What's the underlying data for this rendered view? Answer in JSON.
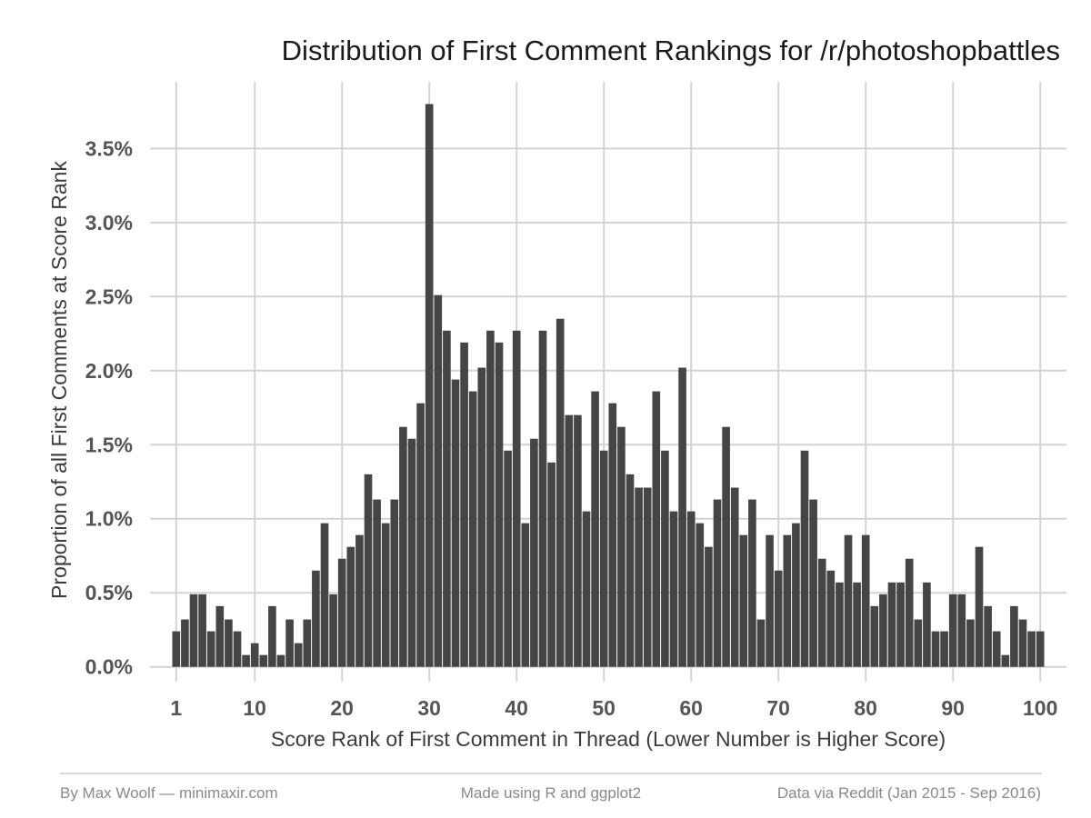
{
  "chart_data": {
    "type": "bar",
    "title": "Distribution of First Comment Rankings for /r/photoshopbattles",
    "xlabel": "Score Rank of First Comment in Thread (Lower Number is Higher Score)",
    "ylabel": "Proportion of all First Comments at Score Rank",
    "x_ticks": [
      1,
      10,
      20,
      30,
      40,
      50,
      60,
      70,
      80,
      90,
      100
    ],
    "y_ticks": [
      0.0,
      0.5,
      1.0,
      1.5,
      2.0,
      2.5,
      3.0,
      3.5
    ],
    "y_tick_labels": [
      "0.0%",
      "0.5%",
      "1.0%",
      "1.5%",
      "2.0%",
      "2.5%",
      "3.0%",
      "3.5%"
    ],
    "xlim": [
      -2,
      103
    ],
    "ylim": [
      -0.1,
      3.95
    ],
    "grid": true,
    "categories": [
      1,
      2,
      3,
      4,
      5,
      6,
      7,
      8,
      9,
      10,
      11,
      12,
      13,
      14,
      15,
      16,
      17,
      18,
      19,
      20,
      21,
      22,
      23,
      24,
      25,
      26,
      27,
      28,
      29,
      30,
      31,
      32,
      33,
      34,
      35,
      36,
      37,
      38,
      39,
      40,
      41,
      42,
      43,
      44,
      45,
      46,
      47,
      48,
      49,
      50,
      51,
      52,
      53,
      54,
      55,
      56,
      57,
      58,
      59,
      60,
      61,
      62,
      63,
      64,
      65,
      66,
      67,
      68,
      69,
      70,
      71,
      72,
      73,
      74,
      75,
      76,
      77,
      78,
      79,
      80,
      81,
      82,
      83,
      84,
      85,
      86,
      87,
      88,
      89,
      90,
      91,
      92,
      93,
      94,
      95,
      96,
      97,
      98,
      99,
      100
    ],
    "values": [
      0.24,
      0.32,
      0.49,
      0.49,
      0.24,
      0.41,
      0.32,
      0.24,
      0.08,
      0.16,
      0.08,
      0.41,
      0.08,
      0.32,
      0.16,
      0.32,
      0.65,
      0.97,
      0.49,
      0.73,
      0.81,
      0.89,
      1.3,
      1.13,
      0.97,
      1.13,
      1.62,
      1.54,
      1.78,
      3.8,
      2.51,
      2.27,
      1.94,
      2.19,
      1.86,
      2.02,
      2.27,
      2.19,
      1.46,
      2.27,
      0.97,
      1.54,
      2.27,
      1.38,
      2.35,
      1.7,
      1.7,
      1.05,
      1.86,
      1.46,
      1.78,
      1.62,
      1.3,
      1.21,
      1.21,
      1.86,
      1.46,
      1.05,
      2.02,
      1.05,
      0.97,
      0.81,
      1.13,
      1.62,
      1.21,
      0.89,
      1.13,
      0.32,
      0.89,
      0.65,
      0.89,
      0.97,
      1.46,
      1.13,
      0.73,
      0.65,
      0.57,
      0.89,
      0.57,
      0.89,
      0.41,
      0.49,
      0.57,
      0.57,
      0.73,
      0.32,
      0.57,
      0.24,
      0.24,
      0.49,
      0.49,
      0.32,
      0.81,
      0.41,
      0.24,
      0.08,
      0.41,
      0.32,
      0.24,
      0.24
    ]
  },
  "footer": {
    "left": "By Max Woolf — minimaxir.com",
    "center": "Made using R and ggplot2",
    "right": "Data via Reddit (Jan 2015 - Sep 2016)"
  },
  "colors": {
    "bar": "#454545",
    "grid": "#d3d3d3",
    "background": "#ffffff"
  }
}
